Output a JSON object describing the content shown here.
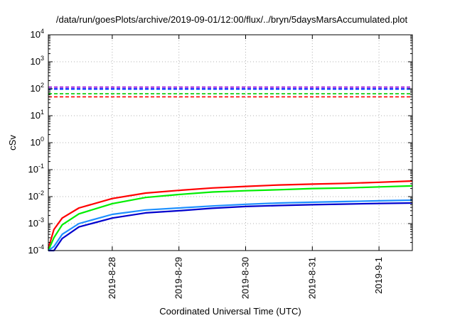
{
  "chart_data": {
    "type": "line",
    "title": "/data/run/goesPlots/archive/2019-09-01/12:00/flux/../bryn/5daysMarsAccumulated.plot",
    "xlabel": "Coordinated Universal Time (UTC)",
    "ylabel": "cSv",
    "y_scale": "log",
    "ylim": [
      0.0001,
      10000
    ],
    "xlim": [
      "2019-08-27 01:00",
      "2019-09-01 12:00"
    ],
    "grid": true,
    "y_ticks": [
      {
        "base": "10",
        "exp": "-4"
      },
      {
        "base": "10",
        "exp": "-3"
      },
      {
        "base": "10",
        "exp": "-2"
      },
      {
        "base": "10",
        "exp": "-1"
      },
      {
        "base": "10",
        "exp": "0"
      },
      {
        "base": "10",
        "exp": "1"
      },
      {
        "base": "10",
        "exp": "2"
      },
      {
        "base": "10",
        "exp": "3"
      },
      {
        "base": "10",
        "exp": "4"
      }
    ],
    "x_ticks": [
      "2019-8-28",
      "2019-8-29",
      "2019-8-30",
      "2019-8-31",
      "2019-9-1"
    ],
    "x": [
      "2019-08-27 01:00",
      "2019-08-27 03:00",
      "2019-08-27 06:00",
      "2019-08-27 12:00",
      "2019-08-28 00:00",
      "2019-08-28 12:00",
      "2019-08-29 00:00",
      "2019-08-29 12:00",
      "2019-08-30 00:00",
      "2019-08-30 12:00",
      "2019-08-31 00:00",
      "2019-08-31 12:00",
      "2019-09-01 00:00",
      "2019-09-01 12:00"
    ],
    "series": [
      {
        "color": "#ff0000",
        "values": [
          0.00012,
          0.0006,
          0.0016,
          0.0038,
          0.0085,
          0.0135,
          0.017,
          0.021,
          0.024,
          0.027,
          0.029,
          0.031,
          0.034,
          0.038
        ]
      },
      {
        "color": "#00ee00",
        "values": [
          8e-05,
          0.0003,
          0.0009,
          0.0023,
          0.0055,
          0.0093,
          0.012,
          0.0148,
          0.0165,
          0.018,
          0.02,
          0.021,
          0.023,
          0.025
        ]
      },
      {
        "color": "#1e90ff",
        "values": [
          5e-05,
          0.00014,
          0.0004,
          0.001,
          0.0022,
          0.0032,
          0.0038,
          0.0045,
          0.0052,
          0.0058,
          0.0062,
          0.0066,
          0.007,
          0.0074
        ]
      },
      {
        "color": "#0000cd",
        "values": [
          4e-05,
          0.0001,
          0.00028,
          0.00075,
          0.0016,
          0.0025,
          0.003,
          0.0037,
          0.0043,
          0.0047,
          0.005,
          0.0053,
          0.0056,
          0.0058
        ]
      }
    ],
    "thresholds": [
      {
        "color": "#ff0000",
        "value": 50
      },
      {
        "color": "#00cc00",
        "value": 65
      },
      {
        "color": "#1e90ff",
        "value": 95
      },
      {
        "color": "#0000ff",
        "value": 100
      },
      {
        "color": "#9400d3",
        "value": 115
      }
    ]
  }
}
